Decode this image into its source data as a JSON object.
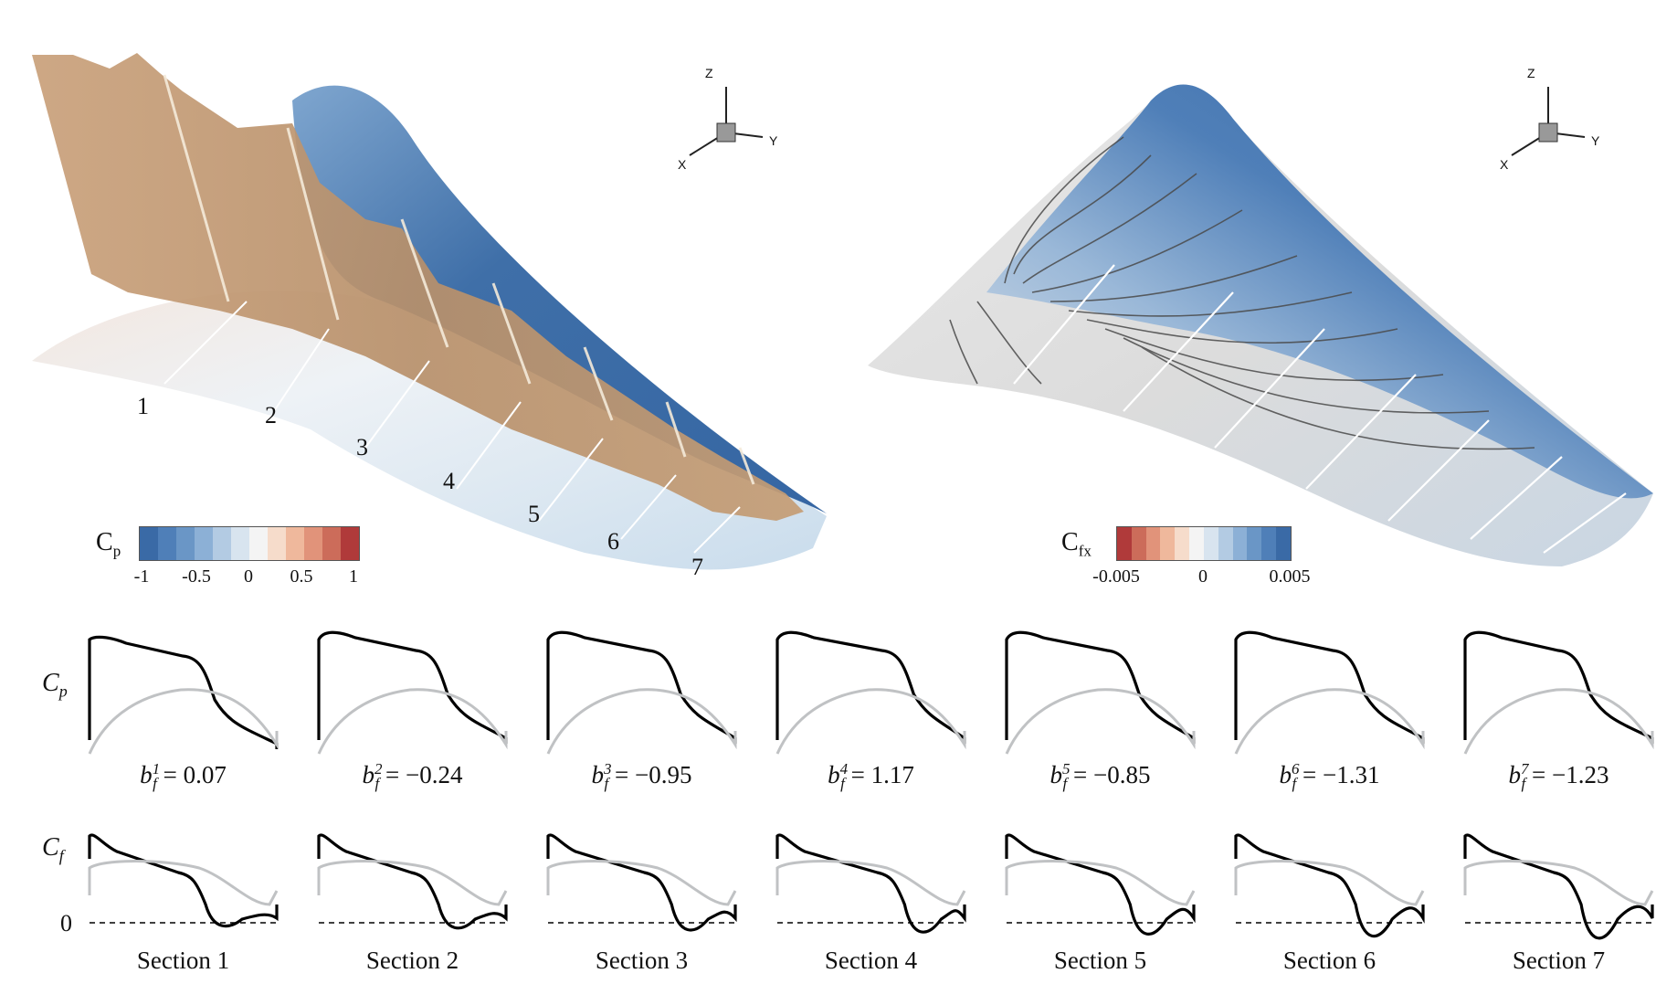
{
  "left_panel": {
    "section_numbers": [
      "1",
      "2",
      "3",
      "4",
      "5",
      "6",
      "7"
    ],
    "triad": {
      "z": "Z",
      "y": "Y",
      "x": "X"
    },
    "colorbar": {
      "title_main": "C",
      "title_sub": "p",
      "ticks": [
        "-1",
        "-0.5",
        "0",
        "0.5",
        "1"
      ],
      "colors": [
        "#3a6aa6",
        "#4f7fb8",
        "#6a96c6",
        "#8cb0d6",
        "#b3cbe3",
        "#d8e4ef",
        "#f4f4f4",
        "#f6dccb",
        "#efb89c",
        "#e1937a",
        "#cc6c5a",
        "#b03a3a"
      ]
    }
  },
  "right_panel": {
    "triad": {
      "z": "Z",
      "y": "Y",
      "x": "X"
    },
    "colorbar": {
      "title_main": "C",
      "title_sub": "fx",
      "ticks": [
        "-0.005",
        "0",
        "0.005"
      ],
      "colors": [
        "#b03a3a",
        "#cc6c5a",
        "#e1937a",
        "#efb89c",
        "#f6dccb",
        "#f4f4f4",
        "#d8e4ef",
        "#b3cbe3",
        "#8cb0d6",
        "#6a96c6",
        "#4f7fb8",
        "#3a6aa6"
      ]
    }
  },
  "row_labels": {
    "cp_main": "C",
    "cp_sub": "p",
    "cf_main": "C",
    "cf_sub": "f",
    "zero": "0"
  },
  "sections": [
    {
      "label": "Section 1",
      "bf_sup": "1",
      "bf_value": "= 0.07"
    },
    {
      "label": "Section 2",
      "bf_sup": "2",
      "bf_value": "= −0.24"
    },
    {
      "label": "Section 3",
      "bf_sup": "3",
      "bf_value": "= −0.95"
    },
    {
      "label": "Section 4",
      "bf_sup": "4",
      "bf_value": "= 1.17"
    },
    {
      "label": "Section 5",
      "bf_sup": "5",
      "bf_value": "= −0.85"
    },
    {
      "label": "Section 6",
      "bf_sup": "6",
      "bf_value": "= −1.31"
    },
    {
      "label": "Section 7",
      "bf_sup": "7",
      "bf_value": "= −1.23"
    }
  ],
  "bf_symbol": "b",
  "bf_subscript": "f"
}
